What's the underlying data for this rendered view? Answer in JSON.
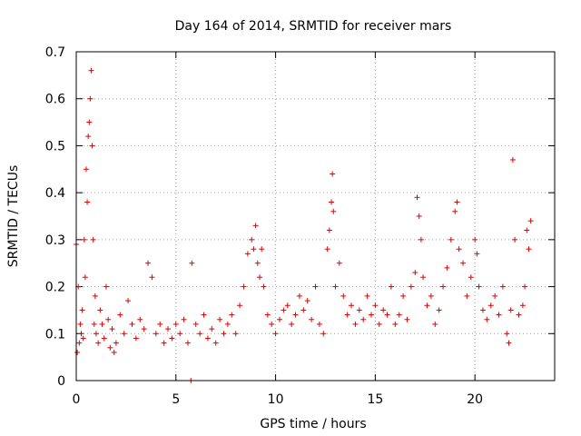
{
  "chart_data": {
    "type": "scatter",
    "title": "Day 164 of 2014, SRMTID for receiver mars",
    "xlabel": "GPS time / hours",
    "ylabel": "SRMTID / TECUs",
    "xlim": [
      0,
      24
    ],
    "ylim": [
      0,
      0.7
    ],
    "xticks": [
      0,
      5,
      10,
      15,
      20
    ],
    "yticks": [
      0,
      0.1,
      0.2,
      0.3,
      0.4,
      0.5,
      0.6,
      0.7
    ],
    "xtick_labels": [
      "0",
      "5",
      "10",
      "15",
      "20"
    ],
    "ytick_labels": [
      "0",
      "0.1",
      "0.2",
      "0.3",
      "0.4",
      "0.5",
      "0.6",
      "0.7"
    ],
    "grid": true,
    "marker": "+",
    "series": [
      {
        "name": "SRMTID",
        "color": "#e00000",
        "x": [
          0.0,
          0.05,
          0.1,
          0.15,
          0.2,
          0.25,
          0.3,
          0.35,
          0.4,
          0.45,
          0.5,
          0.55,
          0.6,
          0.65,
          0.7,
          0.75,
          0.8,
          0.85,
          0.9,
          0.95,
          1.0,
          1.1,
          1.2,
          1.3,
          1.4,
          1.5,
          1.6,
          1.7,
          1.8,
          1.9,
          2.0,
          2.2,
          2.4,
          2.6,
          2.8,
          3.0,
          3.2,
          3.4,
          3.6,
          3.8,
          4.0,
          4.2,
          4.4,
          4.6,
          4.8,
          5.0,
          5.2,
          5.4,
          5.6,
          5.75,
          5.8,
          6.0,
          6.2,
          6.4,
          6.6,
          6.8,
          7.0,
          7.2,
          7.4,
          7.6,
          7.8,
          8.0,
          8.2,
          8.4,
          8.6,
          8.8,
          8.9,
          9.0,
          9.1,
          9.2,
          9.3,
          9.4,
          9.6,
          9.8,
          10.0,
          10.2,
          10.4,
          10.6,
          10.8,
          11.0,
          11.2,
          11.4,
          11.6,
          11.8,
          12.0,
          12.2,
          12.4,
          12.6,
          12.7,
          12.8,
          12.85,
          12.9,
          13.0,
          13.2,
          13.4,
          13.6,
          13.8,
          14.0,
          14.2,
          14.4,
          14.6,
          14.8,
          15.0,
          15.2,
          15.4,
          15.6,
          15.8,
          16.0,
          16.2,
          16.4,
          16.6,
          16.8,
          17.0,
          17.1,
          17.2,
          17.3,
          17.4,
          17.6,
          17.8,
          18.0,
          18.2,
          18.4,
          18.6,
          18.8,
          19.0,
          19.1,
          19.2,
          19.4,
          19.6,
          19.8,
          20.0,
          20.1,
          20.2,
          20.4,
          20.6,
          20.8,
          21.0,
          21.2,
          21.4,
          21.6,
          21.7,
          21.8,
          21.9,
          22.0,
          22.2,
          22.4,
          22.5,
          22.6,
          22.7,
          22.8
        ],
        "y": [
          0.29,
          0.06,
          0.2,
          0.08,
          0.12,
          0.1,
          0.15,
          0.09,
          0.3,
          0.22,
          0.45,
          0.38,
          0.52,
          0.55,
          0.6,
          0.66,
          0.5,
          0.3,
          0.12,
          0.18,
          0.1,
          0.08,
          0.15,
          0.12,
          0.09,
          0.2,
          0.13,
          0.07,
          0.11,
          0.06,
          0.08,
          0.14,
          0.1,
          0.17,
          0.12,
          0.09,
          0.13,
          0.11,
          0.25,
          0.22,
          0.1,
          0.12,
          0.08,
          0.11,
          0.09,
          0.12,
          0.1,
          0.13,
          0.08,
          0.0,
          0.25,
          0.12,
          0.1,
          0.14,
          0.09,
          0.11,
          0.08,
          0.13,
          0.1,
          0.12,
          0.14,
          0.1,
          0.16,
          0.2,
          0.27,
          0.3,
          0.28,
          0.33,
          0.25,
          0.22,
          0.28,
          0.2,
          0.14,
          0.12,
          0.1,
          0.13,
          0.15,
          0.16,
          0.12,
          0.14,
          0.18,
          0.15,
          0.17,
          0.13,
          0.2,
          0.12,
          0.1,
          0.28,
          0.32,
          0.38,
          0.44,
          0.36,
          0.2,
          0.25,
          0.18,
          0.14,
          0.16,
          0.12,
          0.15,
          0.13,
          0.18,
          0.14,
          0.16,
          0.12,
          0.15,
          0.14,
          0.2,
          0.12,
          0.14,
          0.18,
          0.13,
          0.2,
          0.23,
          0.39,
          0.35,
          0.3,
          0.22,
          0.16,
          0.18,
          0.12,
          0.15,
          0.2,
          0.24,
          0.3,
          0.36,
          0.38,
          0.28,
          0.25,
          0.18,
          0.22,
          0.3,
          0.27,
          0.2,
          0.15,
          0.13,
          0.16,
          0.18,
          0.14,
          0.2,
          0.1,
          0.08,
          0.15,
          0.47,
          0.3,
          0.14,
          0.16,
          0.2,
          0.32,
          0.28,
          0.34
        ]
      }
    ]
  }
}
